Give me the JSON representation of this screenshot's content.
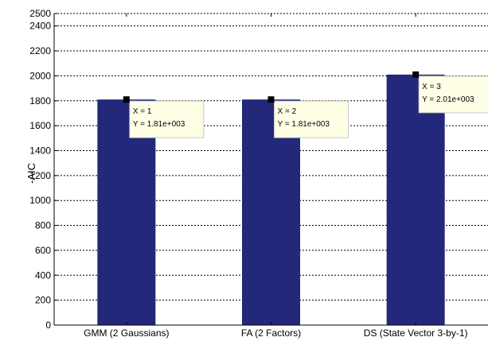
{
  "chart_data": {
    "type": "bar",
    "title": "",
    "xlabel": "",
    "ylabel": "-AIC",
    "categories": [
      "GMM (2 Gaussians)",
      "FA (2 Factors)",
      "DS (State Vector 3-by-1)"
    ],
    "values": [
      1810,
      1810,
      2010
    ],
    "ylim": [
      0,
      2500
    ],
    "yticks": [
      0,
      200,
      400,
      600,
      800,
      1000,
      1200,
      1400,
      1600,
      1800,
      2000,
      2200,
      2400,
      2500
    ],
    "grid": true,
    "bar_color": "#23287a",
    "datatips": [
      {
        "x_text": "X = 1",
        "y_text": "Y = 1.81e+003"
      },
      {
        "x_text": "X = 2",
        "y_text": "Y = 1.81e+003"
      },
      {
        "x_text": "X = 3",
        "y_text": "Y = 2.01e+003"
      }
    ]
  }
}
